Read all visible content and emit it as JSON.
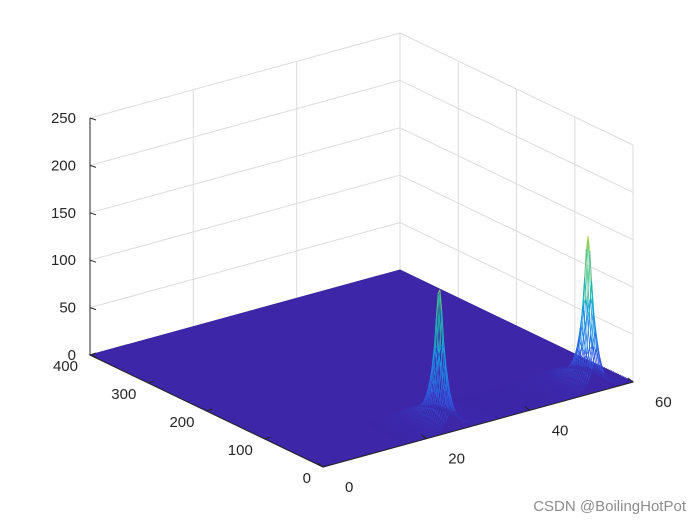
{
  "chart_data": {
    "type": "surface",
    "title": "",
    "xlabel": "",
    "ylabel": "",
    "zlabel": "",
    "xlim": [
      0,
      60
    ],
    "ylim": [
      0,
      400
    ],
    "zlim": [
      0,
      250
    ],
    "x_ticks": [
      "0",
      "20",
      "40",
      "60"
    ],
    "y_ticks": [
      "0",
      "100",
      "200",
      "300",
      "400"
    ],
    "z_ticks": [
      "0",
      "50",
      "100",
      "150",
      "200",
      "250"
    ],
    "grid": true,
    "colormap": "parula",
    "floor_color": "#3d26a8",
    "peaks": [
      {
        "x": 25,
        "y": 22,
        "z": 145
      },
      {
        "x": 53,
        "y": 15,
        "z": 160
      }
    ]
  },
  "watermark": "CSDN @BoilingHotPot"
}
